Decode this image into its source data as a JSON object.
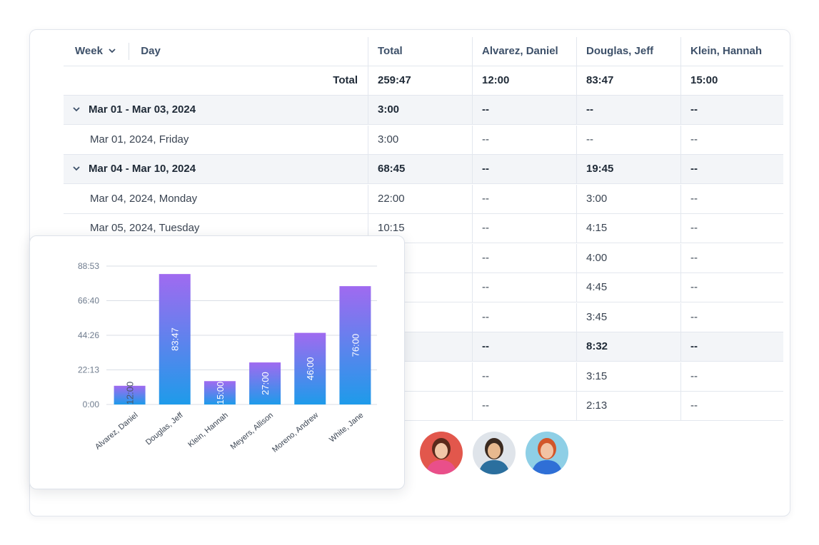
{
  "table": {
    "header": {
      "week_label": "Week",
      "day_label": "Day",
      "columns": [
        "Total",
        "Alvarez, Daniel",
        "Douglas, Jeff",
        "Klein, Hannah"
      ]
    },
    "total_row": {
      "label": "Total",
      "values": [
        "259:47",
        "12:00",
        "83:47",
        "15:00"
      ]
    },
    "rows": [
      {
        "kind": "group",
        "label": "Mar 01 - Mar 03, 2024",
        "values": [
          "3:00",
          "--",
          "--",
          "--"
        ]
      },
      {
        "kind": "day",
        "label": "Mar 01, 2024, Friday",
        "values": [
          "3:00",
          "--",
          "--",
          "--"
        ]
      },
      {
        "kind": "group",
        "label": "Mar 04 - Mar 10, 2024",
        "values": [
          "68:45",
          "--",
          "19:45",
          "--"
        ]
      },
      {
        "kind": "day",
        "label": "Mar 04, 2024, Monday",
        "values": [
          "22:00",
          "--",
          "3:00",
          "--"
        ]
      },
      {
        "kind": "day",
        "label": "Mar 05, 2024, Tuesday",
        "values": [
          "10:15",
          "--",
          "4:15",
          "--"
        ]
      },
      {
        "kind": "day",
        "label": "",
        "values": [
          "",
          "--",
          "4:00",
          "--"
        ]
      },
      {
        "kind": "day",
        "label": "",
        "values": [
          "",
          "--",
          "4:45",
          "--"
        ]
      },
      {
        "kind": "day",
        "label": "",
        "values": [
          "",
          "--",
          "3:45",
          "--"
        ]
      },
      {
        "kind": "group",
        "label": "",
        "values": [
          "",
          "--",
          "8:32",
          "--"
        ]
      },
      {
        "kind": "day",
        "label": "",
        "values": [
          "",
          "--",
          "3:15",
          "--"
        ]
      },
      {
        "kind": "day",
        "label": "",
        "values": [
          "",
          "--",
          "2:13",
          "--"
        ]
      }
    ]
  },
  "avatars": [
    {
      "name": "avatar-woman-pink",
      "bg": "#e2574c",
      "skin": "#f1c7a8",
      "hair": "#5b2a1c",
      "shirt": "#e94f8a"
    },
    {
      "name": "avatar-man-beard",
      "bg": "#dfe4ea",
      "skin": "#e8b98f",
      "hair": "#3b2a20",
      "shirt": "#2b6f9e"
    },
    {
      "name": "avatar-woman-glasses",
      "bg": "#8ecfe6",
      "skin": "#f2c3a4",
      "hair": "#d2562a",
      "shirt": "#2f6fd6"
    }
  ],
  "chart_data": {
    "type": "bar",
    "categories": [
      "Alvarez, Daniel",
      "Douglas, Jeff",
      "Klein, Hannah",
      "Meyers, Allison",
      "Moreno, Andrew",
      "White, Jane"
    ],
    "values": [
      12.0,
      83.783,
      15.0,
      27.0,
      46.0,
      76.0
    ],
    "data_labels": [
      "12:00",
      "83:47",
      "15:00",
      "27:00",
      "46:00",
      "76:00"
    ],
    "y_tick_labels": [
      "0:00",
      "22:13",
      "44:26",
      "66:40",
      "88:53"
    ],
    "y_tick_values": [
      0,
      22.2167,
      44.4333,
      66.6667,
      88.8833
    ],
    "ylim": [
      0,
      88.8833
    ],
    "grid": true,
    "colors": {
      "bar_top": "#a06af0",
      "bar_bottom": "#1e9bea",
      "grid": "#d9dee6"
    }
  }
}
